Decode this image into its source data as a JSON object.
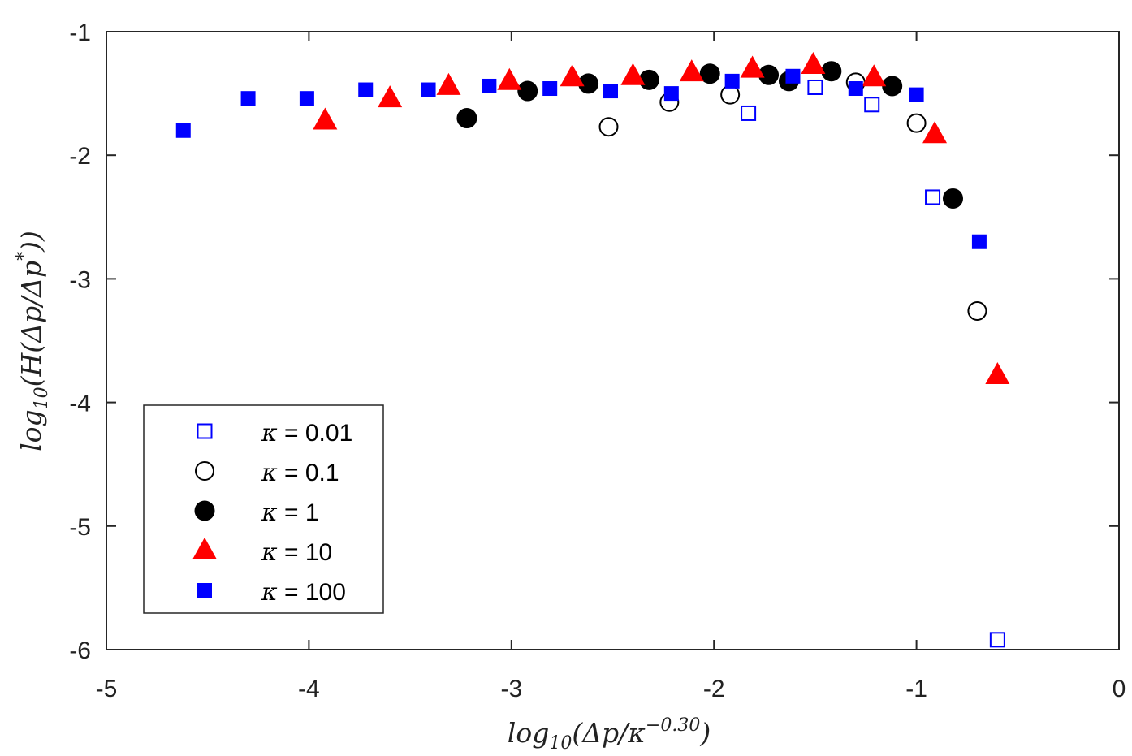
{
  "chart_data": {
    "type": "scatter",
    "title": "",
    "xlabel": {
      "prefix": "log",
      "sub": "10",
      "body": "(Δp/κ",
      "sup": "−0.30",
      "suffix": ")"
    },
    "ylabel": {
      "prefix": "log",
      "sub": "10",
      "body": "(H(Δp/Δp",
      "sup": "*",
      "suffix": "))"
    },
    "xlim": [
      -5,
      0
    ],
    "ylim": [
      -6,
      -1
    ],
    "xticks": [
      -5,
      -4,
      -3,
      -2,
      -1,
      0
    ],
    "yticks": [
      -6,
      -5,
      -4,
      -3,
      -2,
      -1
    ],
    "xtick_labels": [
      "-5",
      "-4",
      "-3",
      "-2",
      "-1",
      "0"
    ],
    "ytick_labels": [
      "-6",
      "-5",
      "-4",
      "-3",
      "-2",
      "-1"
    ],
    "legend_position": "lower-left",
    "series": [
      {
        "name": "κ = 0.01",
        "symbol": "κ",
        "value_label": " = 0.01",
        "marker": "square-open",
        "color": "#0000ff",
        "points": [
          [
            -1.83,
            -1.66
          ],
          [
            -1.5,
            -1.45
          ],
          [
            -1.22,
            -1.59
          ],
          [
            -0.92,
            -2.34
          ],
          [
            -0.6,
            -5.92
          ]
        ]
      },
      {
        "name": "κ = 0.1",
        "symbol": "κ",
        "value_label": " = 0.1",
        "marker": "circle-open",
        "color": "#000000",
        "points": [
          [
            -2.52,
            -1.77
          ],
          [
            -2.22,
            -1.57
          ],
          [
            -1.92,
            -1.51
          ],
          [
            -1.3,
            -1.41
          ],
          [
            -1.0,
            -1.74
          ],
          [
            -0.7,
            -3.26
          ]
        ]
      },
      {
        "name": "κ = 1",
        "symbol": "κ",
        "value_label": " = 1",
        "marker": "circle-filled",
        "color": "#000000",
        "points": [
          [
            -3.22,
            -1.7
          ],
          [
            -2.92,
            -1.48
          ],
          [
            -2.62,
            -1.42
          ],
          [
            -2.32,
            -1.39
          ],
          [
            -2.02,
            -1.34
          ],
          [
            -1.73,
            -1.35
          ],
          [
            -1.63,
            -1.4
          ],
          [
            -1.42,
            -1.32
          ],
          [
            -1.12,
            -1.44
          ],
          [
            -0.82,
            -2.35
          ]
        ]
      },
      {
        "name": "κ = 10",
        "symbol": "κ",
        "value_label": " = 10",
        "marker": "triangle-filled",
        "color": "#ff0000",
        "points": [
          [
            -3.92,
            -1.72
          ],
          [
            -3.6,
            -1.54
          ],
          [
            -3.31,
            -1.44
          ],
          [
            -3.01,
            -1.4
          ],
          [
            -2.7,
            -1.37
          ],
          [
            -2.4,
            -1.36
          ],
          [
            -2.11,
            -1.33
          ],
          [
            -1.81,
            -1.3
          ],
          [
            -1.51,
            -1.27
          ],
          [
            -1.21,
            -1.37
          ],
          [
            -0.91,
            -1.83
          ],
          [
            -0.6,
            -3.78
          ]
        ]
      },
      {
        "name": "κ = 100",
        "symbol": "κ",
        "value_label": " = 100",
        "marker": "square-filled",
        "color": "#0000ff",
        "points": [
          [
            -4.62,
            -1.8
          ],
          [
            -4.3,
            -1.54
          ],
          [
            -4.01,
            -1.54
          ],
          [
            -3.72,
            -1.47
          ],
          [
            -3.41,
            -1.47
          ],
          [
            -3.11,
            -1.44
          ],
          [
            -2.81,
            -1.46
          ],
          [
            -2.51,
            -1.48
          ],
          [
            -2.21,
            -1.5
          ],
          [
            -1.91,
            -1.4
          ],
          [
            -1.61,
            -1.36
          ],
          [
            -1.3,
            -1.46
          ],
          [
            -1.0,
            -1.51
          ],
          [
            -0.69,
            -2.7
          ]
        ]
      }
    ]
  }
}
